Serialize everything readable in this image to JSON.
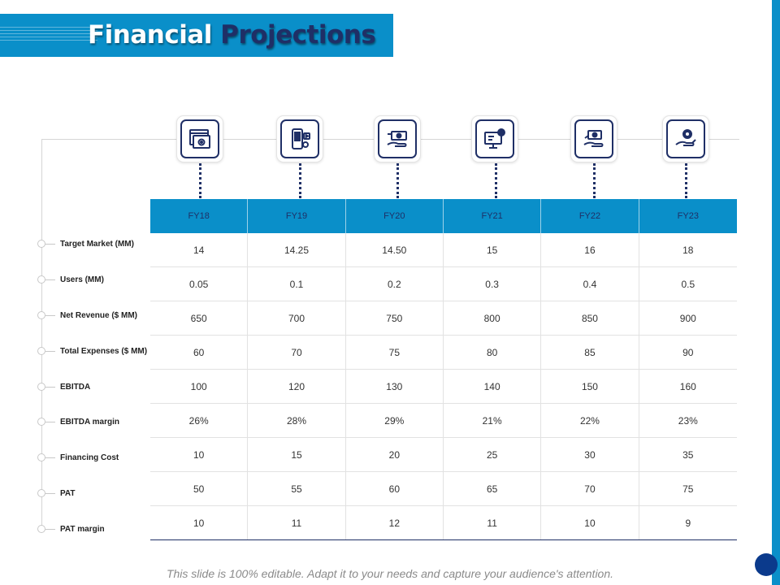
{
  "title": {
    "part1": "Financial",
    "part2": "Projections"
  },
  "colors": {
    "accent": "#0a8fc9",
    "navy": "#1f2f66",
    "dot": "#0b3a8c"
  },
  "icons": [
    "browser-settings-icon",
    "phone-media-icon",
    "hand-money-icon",
    "monitor-code-gear-icon",
    "hand-cash-icon",
    "hand-gear-icon"
  ],
  "table": {
    "headers": [
      "FY18",
      "FY19",
      "FY20",
      "FY21",
      "FY22",
      "FY23"
    ],
    "rows": [
      {
        "label": "Target Market (MM)",
        "values": [
          "14",
          "14.25",
          "14.50",
          "15",
          "16",
          "18"
        ]
      },
      {
        "label": "Users (MM)",
        "values": [
          "0.05",
          "0.1",
          "0.2",
          "0.3",
          "0.4",
          "0.5"
        ]
      },
      {
        "label": "Net Revenue ($ MM)",
        "values": [
          "650",
          "700",
          "750",
          "800",
          "850",
          "900"
        ]
      },
      {
        "label": "Total Expenses ($ MM)",
        "values": [
          "60",
          "70",
          "75",
          "80",
          "85",
          "90"
        ]
      },
      {
        "label": "EBITDA",
        "values": [
          "100",
          "120",
          "130",
          "140",
          "150",
          "160"
        ]
      },
      {
        "label": "EBITDA margin",
        "values": [
          "26%",
          "28%",
          "29%",
          "21%",
          "22%",
          "23%"
        ]
      },
      {
        "label": "Financing Cost",
        "values": [
          "10",
          "15",
          "20",
          "25",
          "30",
          "35"
        ]
      },
      {
        "label": "PAT",
        "values": [
          "50",
          "55",
          "60",
          "65",
          "70",
          "75"
        ]
      },
      {
        "label": "PAT margin",
        "values": [
          "10",
          "11",
          "12",
          "11",
          "10",
          "9"
        ]
      }
    ]
  },
  "footer": "This slide is 100% editable.  Adapt it to your needs and capture your audience's attention."
}
